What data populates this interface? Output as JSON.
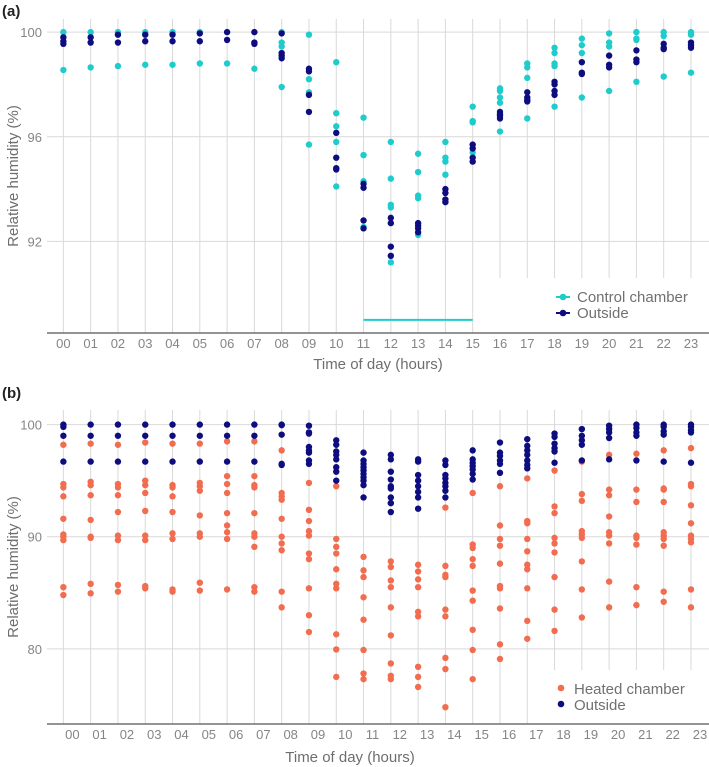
{
  "chart_data": [
    {
      "type": "scatter",
      "panel_label": "(a)",
      "xlabel": "Time of day (hours)",
      "ylabel": "Relative humidity (%)",
      "x_tick_labels": [
        "00",
        "01",
        "02",
        "03",
        "04",
        "05",
        "06",
        "07",
        "08",
        "09",
        "10",
        "11",
        "12",
        "13",
        "14",
        "15",
        "16",
        "17",
        "18",
        "19",
        "20",
        "21",
        "22",
        "23"
      ],
      "yticks": [
        100,
        96,
        92
      ],
      "ylim": [
        88.5,
        100.5
      ],
      "xlim": [
        -0.6,
        23.66
      ],
      "grid": true,
      "legend_position": "bottom-right",
      "annotation_line": {
        "x_start": 11,
        "x_end": 15,
        "y": 89.0,
        "color": "#1fcccc"
      },
      "series": [
        {
          "name": "Control chamber",
          "color": "#1fcccc",
          "values_by_hour": [
            [
              100,
              98.55
            ],
            [
              100,
              98.65
            ],
            [
              100,
              98.7
            ],
            [
              100,
              98.75
            ],
            [
              100,
              98.75
            ],
            [
              100,
              98.8
            ],
            [
              98.8
            ],
            [
              98.6
            ],
            [
              100,
              99.6,
              99.45,
              97.9
            ],
            [
              99.9,
              98.2,
              97.7,
              95.7
            ],
            [
              98.85,
              96.9,
              96.4,
              95.8,
              94.1
            ],
            [
              96.73,
              95.3,
              94.3,
              92.55
            ],
            [
              95.8,
              94.4,
              93.4,
              93.3,
              91.2
            ],
            [
              95.35,
              94.65,
              93.75,
              93.65,
              92.25
            ],
            [
              95.8,
              95.2,
              95.05,
              94.55
            ],
            [
              97.15,
              96.6,
              96.55,
              95.4
            ],
            [
              97.85,
              97.75,
              97.5,
              97.3,
              96.2
            ],
            [
              98.8,
              98.65,
              98.25,
              96.7
            ],
            [
              99.4,
              99.2,
              98.8,
              98.7,
              97.15
            ],
            [
              99.75,
              99.5,
              99.2,
              97.5
            ],
            [
              99.95,
              99.6,
              99.45,
              97.75
            ],
            [
              100,
              99.75,
              99.7,
              98.1
            ],
            [
              100,
              99.85,
              98.3
            ],
            [
              100,
              99.9,
              98.45
            ]
          ]
        },
        {
          "name": "Outside",
          "color": "#0d0d80",
          "values_by_hour": [
            [
              99.8,
              99.65,
              99.55
            ],
            [
              99.8,
              99.6
            ],
            [
              99.9,
              99.6
            ],
            [
              99.9,
              99.65
            ],
            [
              99.9,
              99.65
            ],
            [
              99.95,
              99.65
            ],
            [
              100,
              99.7
            ],
            [
              100,
              99.6,
              99.55
            ],
            [
              99.95,
              99.2,
              99.1,
              99.0
            ],
            [
              98.6,
              98.5,
              97.6,
              96.95
            ],
            [
              96.15,
              95.2,
              94.8,
              94.75
            ],
            [
              94.2,
              94.05,
              92.8,
              92.5
            ],
            [
              92.9,
              92.7,
              91.8,
              91.45
            ],
            [
              92.7,
              92.6,
              92.5,
              92.35
            ],
            [
              94.0,
              93.85,
              93.6,
              93.5
            ],
            [
              95.7,
              95.55,
              95.2,
              95.05
            ],
            [
              96.95,
              96.85,
              96.8,
              96.7
            ],
            [
              97.7,
              97.5,
              97.4,
              97.35
            ],
            [
              98.1,
              98.0,
              97.75,
              97.6
            ],
            [
              98.85,
              98.45,
              98.4
            ],
            [
              99.1,
              98.75,
              98.65
            ],
            [
              99.3,
              98.95,
              98.85
            ],
            [
              99.55,
              99.4,
              99.35
            ],
            [
              99.6,
              99.5,
              99.4
            ]
          ]
        }
      ]
    },
    {
      "type": "scatter",
      "panel_label": "(b)",
      "xlabel": "Time of day (hours)",
      "ylabel": "Relative humidity (%)",
      "x_tick_labels": [
        "00",
        "01",
        "02",
        "03",
        "04",
        "05",
        "06",
        "07",
        "08",
        "09",
        "10",
        "11",
        "12",
        "13",
        "14",
        "15",
        "16",
        "17",
        "18",
        "19",
        "20",
        "21",
        "22",
        "23"
      ],
      "yticks": [
        100,
        90,
        80
      ],
      "ylim": [
        73.3,
        101.3
      ],
      "xlim": [
        -0.6,
        23.66
      ],
      "grid": true,
      "legend_position": "bottom-right",
      "series": [
        {
          "name": "Heated chamber",
          "color": "#f26c4f",
          "values_by_hour": [
            [
              98.2,
              94.7,
              94.4,
              93.6,
              91.6,
              90.2,
              90.0,
              89.7,
              85.5,
              84.8
            ],
            [
              98.3,
              94.9,
              94.6,
              93.7,
              91.5,
              90.0,
              89.9,
              85.8,
              84.95
            ],
            [
              98.2,
              94.7,
              94.4,
              93.7,
              92.2,
              90.1,
              89.7,
              85.7,
              85.1
            ],
            [
              98.4,
              95.0,
              94.6,
              93.9,
              92.3,
              90.1,
              89.7,
              85.6,
              85.4
            ],
            [
              98.3,
              94.6,
              94.4,
              93.6,
              92.2,
              90.3,
              89.8,
              85.3,
              85.1
            ],
            [
              98.3,
              94.8,
              94.5,
              94.1,
              91.9,
              90.3,
              90.0,
              85.9,
              85.2
            ],
            [
              98.5,
              95.4,
              94.7,
              93.9,
              92.1,
              91.0,
              90.4,
              89.8,
              85.3
            ],
            [
              98.5,
              95.4,
              94.6,
              94.4,
              92.1,
              90.3,
              90.0,
              89.1,
              85.5,
              85.1
            ],
            [
              97.7,
              93.9,
              93.6,
              93.3,
              91.6,
              90.0,
              89.4,
              88.8,
              85.1,
              83.7
            ],
            [
              94.8,
              92.4,
              91.4,
              90.5,
              90.1,
              88.5,
              88.0,
              85.4,
              83.0,
              81.5
            ],
            [
              94.5,
              89.8,
              89.1,
              88.5,
              87.1,
              85.8,
              85.4,
              81.3,
              79.95,
              77.5
            ],
            [
              88.2,
              87.0,
              86.4,
              84.6,
              82.6,
              79.9,
              77.8,
              77.3
            ],
            [
              93.0,
              87.8,
              87.3,
              86.1,
              85.5,
              83.7,
              81.2,
              78.7,
              77.6,
              77.3
            ],
            [
              87.5,
              86.9,
              86.2,
              85.5,
              83.3,
              82.9,
              78.4,
              77.5,
              76.6
            ],
            [
              92.6,
              87.4,
              86.6,
              86.4,
              83.5,
              82.9,
              79.2,
              78.2,
              74.8
            ],
            [
              93.9,
              89.3,
              89.0,
              88.0,
              87.4,
              85.2,
              84.3,
              81.7,
              79.9,
              77.3
            ],
            [
              94.5,
              91.0,
              89.8,
              89.2,
              87.6,
              85.6,
              85.4,
              83.6,
              80.4,
              79.1
            ],
            [
              95.2,
              91.4,
              91.2,
              89.8,
              88.7,
              87.5,
              87.1,
              85.4,
              82.5,
              80.9
            ],
            [
              95.9,
              92.7,
              92.1,
              89.9,
              89.4,
              88.6,
              86.4,
              83.5,
              81.6
            ],
            [
              96.7,
              93.8,
              93.2,
              90.5,
              90.2,
              89.9,
              87.8,
              85.3,
              82.8
            ],
            [
              97.3,
              94.2,
              93.7,
              91.8,
              90.4,
              90.1,
              89.4,
              86.0,
              83.7
            ],
            [
              97.4,
              94.2,
              93.1,
              90.1,
              89.9,
              89.3,
              85.5,
              83.9
            ],
            [
              97.7,
              94.3,
              94.2,
              93.1,
              90.4,
              90.1,
              89.8,
              89.2,
              85.1,
              84.2
            ],
            [
              97.9,
              94.7,
              94.5,
              92.8,
              91.2,
              90.1,
              89.8,
              89.5,
              85.3,
              83.7
            ]
          ]
        },
        {
          "name": "Outside",
          "color": "#0d0d80",
          "values_by_hour": [
            [
              100,
              99.8,
              99.0,
              96.7
            ],
            [
              100,
              99.0,
              96.7
            ],
            [
              100,
              99.0,
              96.7
            ],
            [
              100,
              99.0,
              96.7
            ],
            [
              100,
              99.0,
              96.7
            ],
            [
              100,
              99.0,
              96.7
            ],
            [
              100,
              99.0,
              96.7
            ],
            [
              100,
              99.0,
              96.7
            ],
            [
              100,
              99.95,
              99.1,
              96.5,
              96.4
            ],
            [
              99.9,
              99.3,
              99.2,
              98.0,
              97.7,
              97.5,
              96.8,
              96.5
            ],
            [
              98.6,
              98.2,
              97.6,
              97.3,
              96.9,
              96.2,
              95.8,
              95.0
            ],
            [
              97.5,
              96.8,
              96.5,
              96.2,
              95.9,
              95.6,
              95.3,
              95.0,
              94.6,
              93.5
            ],
            [
              97.3,
              96.9,
              95.8,
              95.1,
              94.5,
              94.3,
              93.5,
              93.0,
              92.2
            ],
            [
              96.9,
              96.7,
              95.5,
              95.0,
              94.5,
              94.0,
              93.5,
              92.5
            ],
            [
              96.8,
              96.4,
              95.5,
              95.2,
              94.8,
              94.5,
              94.1,
              93.5
            ],
            [
              97.7,
              96.9,
              96.6,
              96.3,
              96.0,
              95.6,
              95.1
            ],
            [
              98.4,
              97.5,
              97.2,
              96.8,
              96.5,
              95.7
            ],
            [
              98.7,
              98.1,
              97.7,
              97.3,
              96.8,
              96.4,
              96.1
            ],
            [
              99.2,
              98.9,
              98.3,
              97.9,
              97.6,
              96.6
            ],
            [
              99.6,
              99.0,
              98.6,
              98.2,
              96.8
            ],
            [
              99.9,
              99.6,
              99.3,
              98.8,
              96.9
            ],
            [
              100,
              99.7,
              99.3,
              99.0,
              96.8
            ],
            [
              100,
              99.8,
              99.4,
              99.1,
              96.7
            ],
            [
              100,
              99.8,
              99.5,
              99.3,
              96.6
            ]
          ]
        }
      ]
    }
  ]
}
